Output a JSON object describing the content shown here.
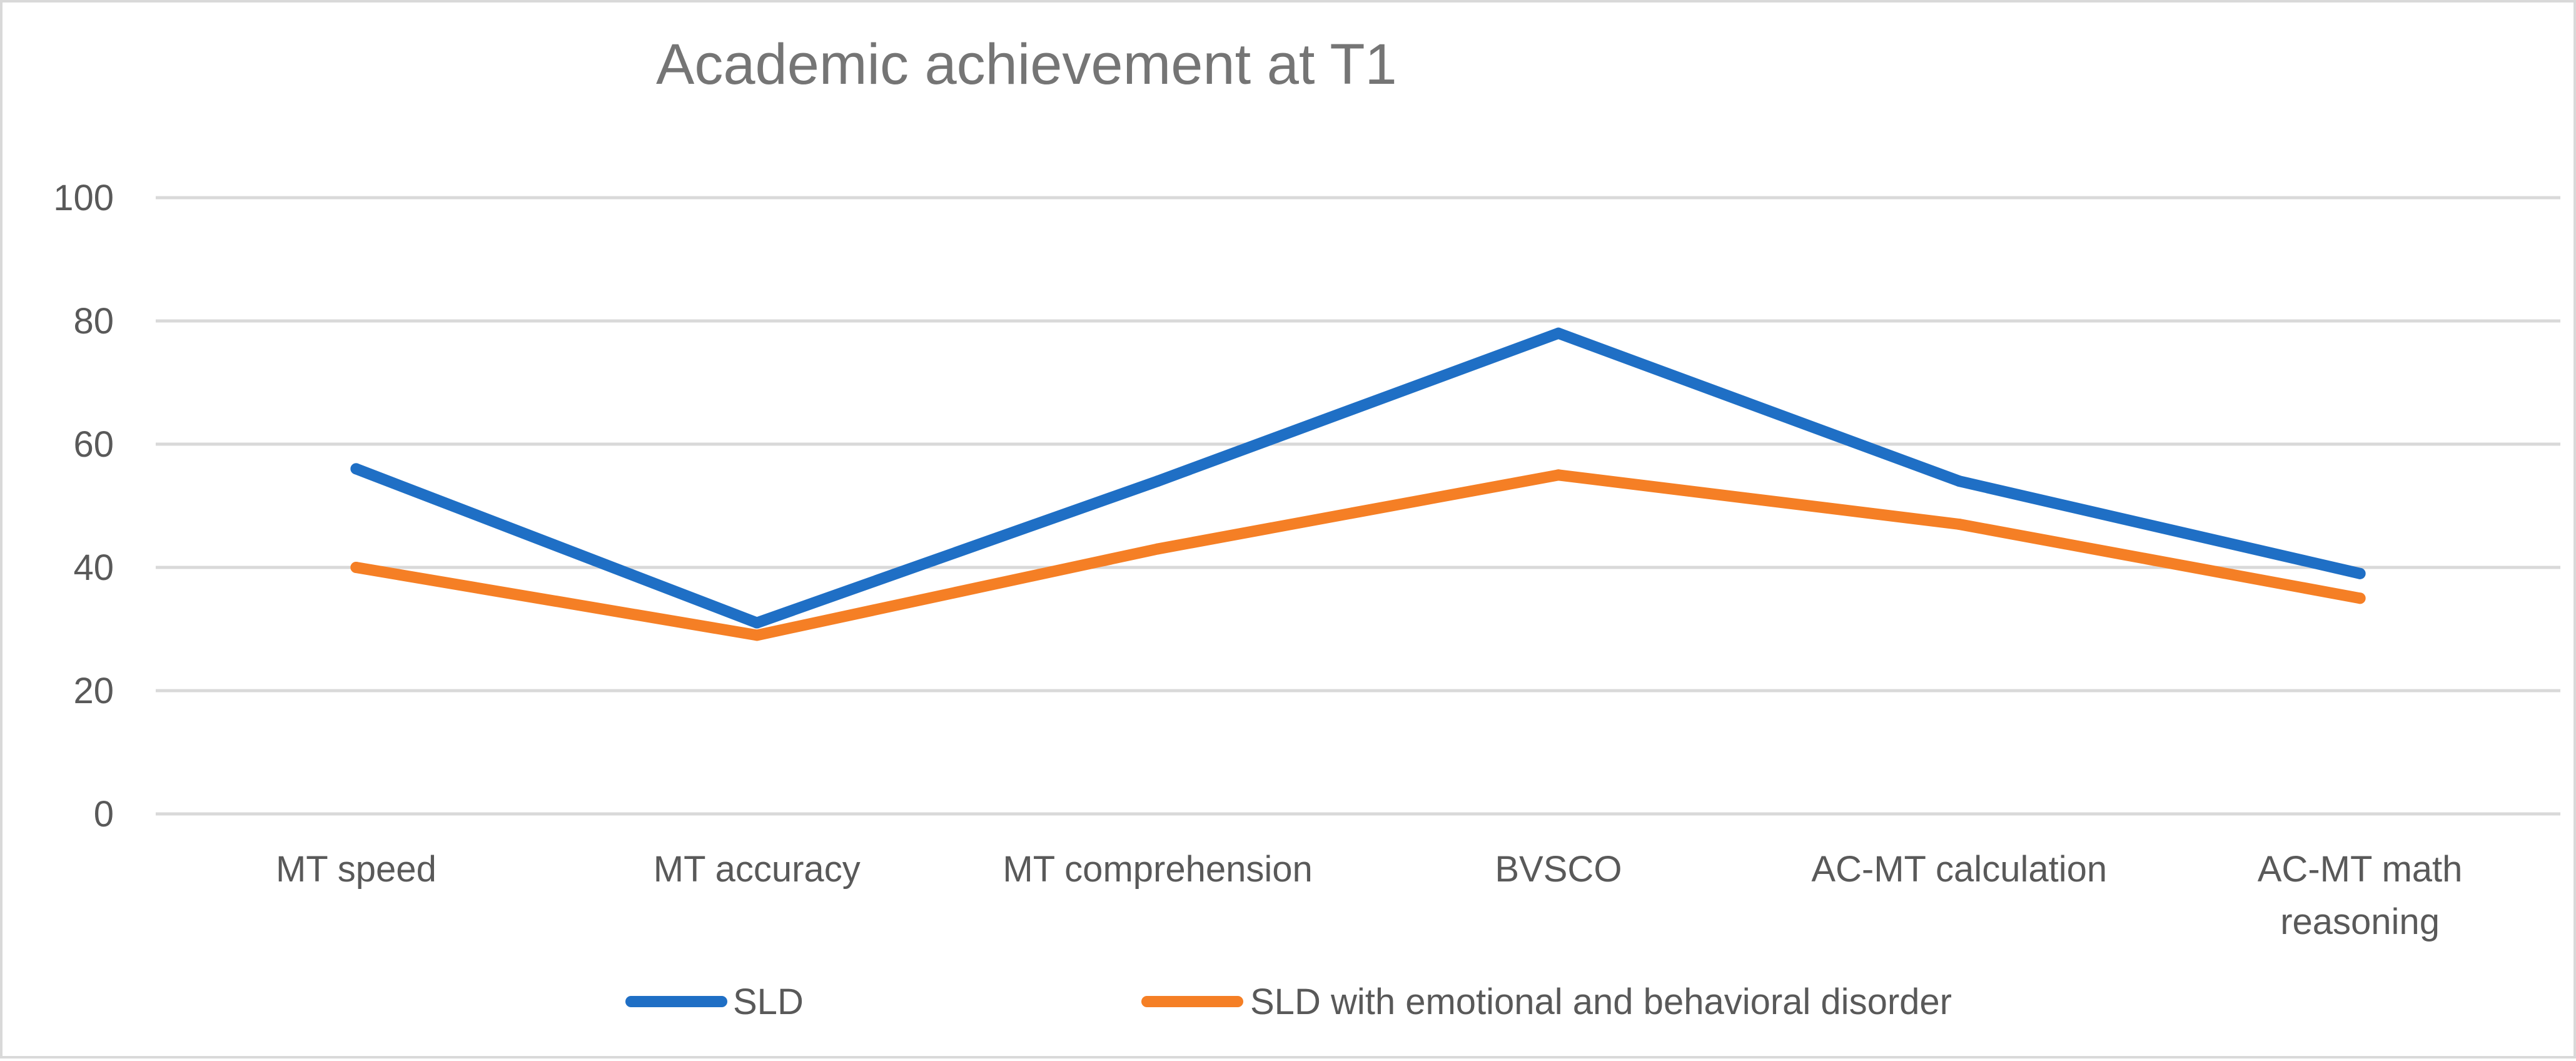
{
  "chart_data": {
    "type": "line",
    "title": "Academic achievement at T1",
    "xlabel": "",
    "ylabel": "",
    "ylim": [
      0,
      100
    ],
    "yticks": [
      0,
      20,
      40,
      60,
      80,
      100
    ],
    "grid": true,
    "legend_position": "bottom",
    "categories": [
      [
        "MT speed"
      ],
      [
        "MT accuracy"
      ],
      [
        "MT comprehension"
      ],
      [
        "BVSCO"
      ],
      [
        "AC-MT calculation"
      ],
      [
        "AC-MT math",
        "reasoning"
      ]
    ],
    "series": [
      {
        "name": "SLD",
        "color": "#1f6fc5",
        "values": [
          56,
          31,
          54,
          78,
          54,
          39
        ]
      },
      {
        "name": "SLD with emotional and behavioral disorder",
        "color": "#f57f25",
        "values": [
          40,
          29,
          43,
          55,
          47,
          35
        ]
      }
    ]
  }
}
